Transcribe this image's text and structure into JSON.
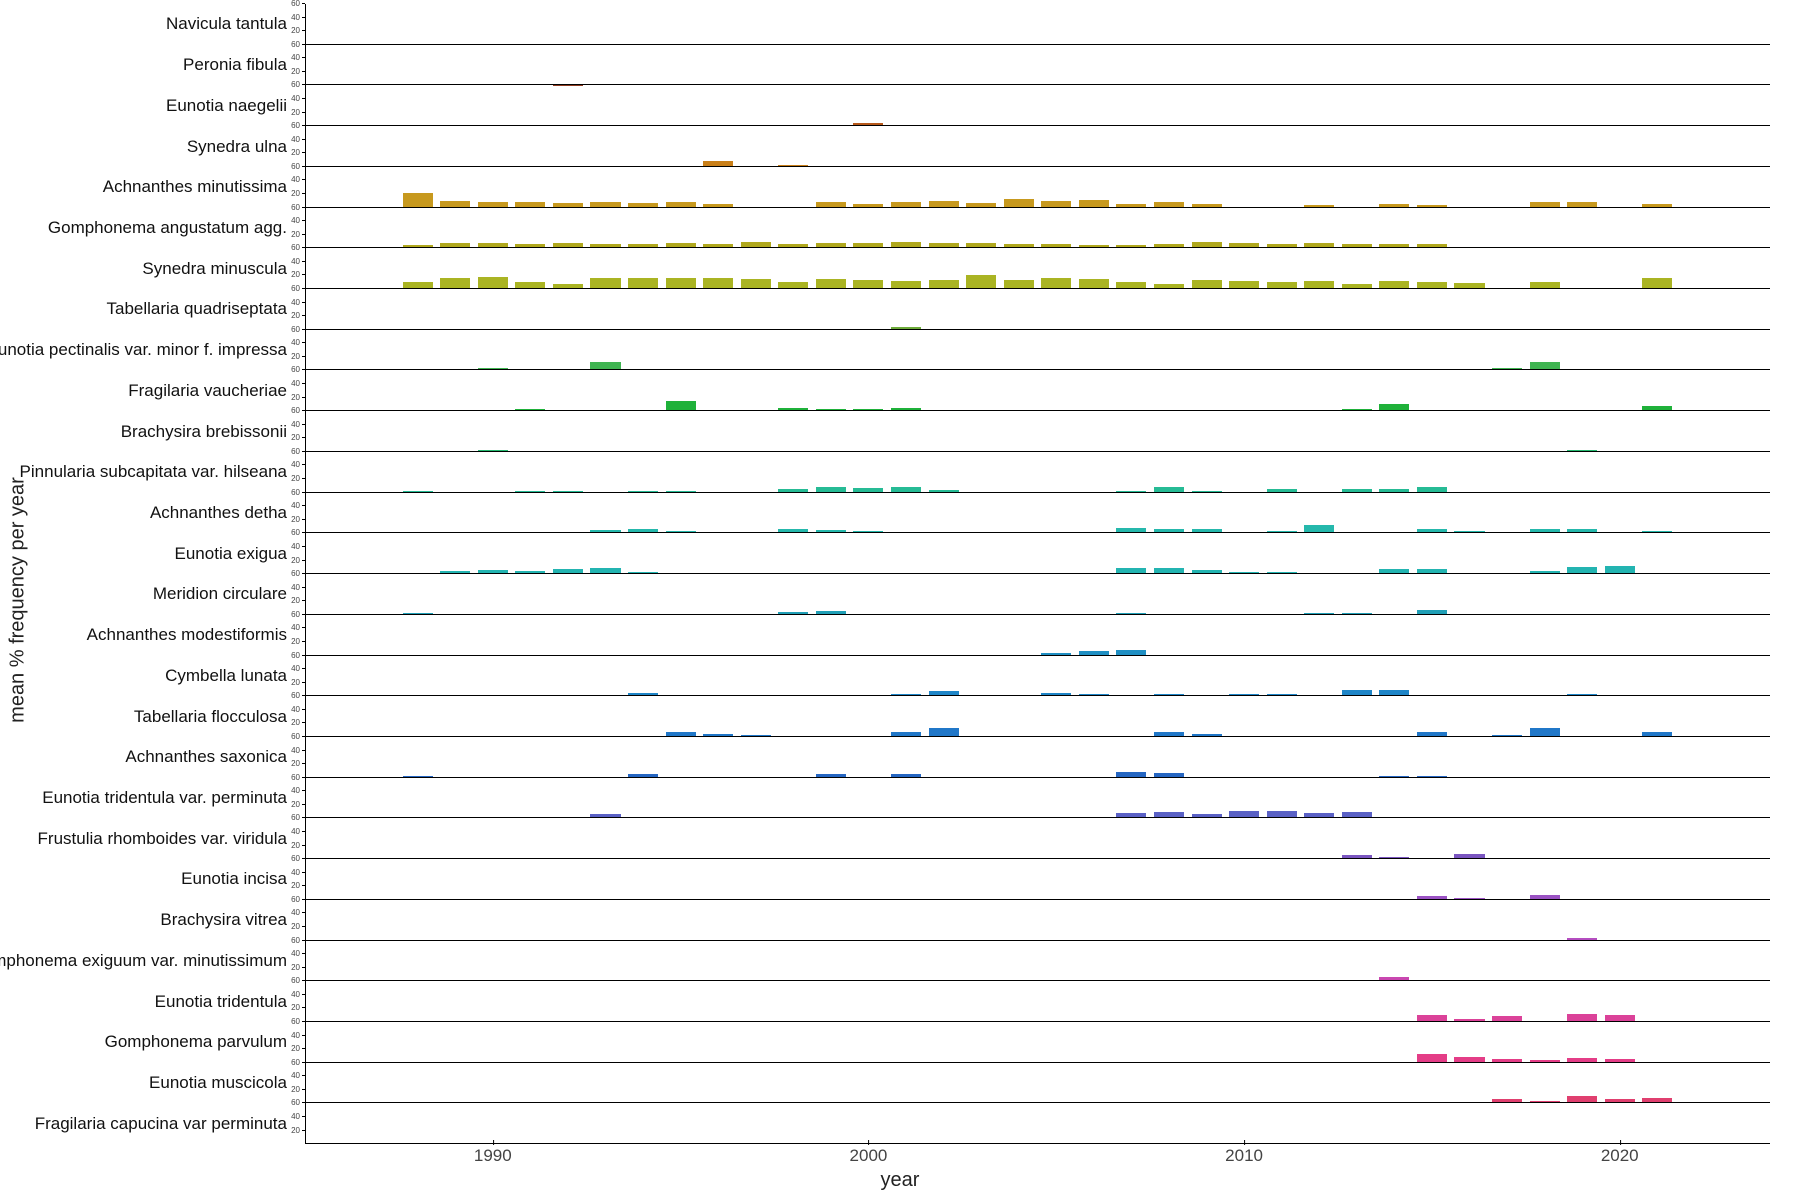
{
  "axis": {
    "ylabel": "mean % frequency per year",
    "xlabel": "year",
    "x_min": 1985,
    "x_max": 2024,
    "x_ticks": [
      1990,
      2000,
      2010,
      2020
    ],
    "y_max": 60,
    "y_ticks": [
      20,
      40,
      60
    ],
    "bar_width_years": 0.8,
    "background_color": "#ffffff",
    "axis_line_color": "#000000",
    "label_fontsize": 20,
    "species_label_fontsize": 17,
    "tick_label_fontsize": 17,
    "ytick_label_fontsize": 8
  },
  "species": [
    {
      "label": "Navicula tantula",
      "color": "#5a2121",
      "points": [
        [
          1996,
          1
        ]
      ]
    },
    {
      "label": "Peronia fibula",
      "color": "#8c3a1f",
      "points": [
        [
          1992,
          1
        ]
      ]
    },
    {
      "label": "Eunotia naegelii",
      "color": "#b6581a",
      "points": [
        [
          2000,
          5
        ]
      ]
    },
    {
      "label": "Synedra ulna",
      "color": "#c97f18",
      "points": [
        [
          1996,
          9
        ],
        [
          1998,
          3
        ]
      ]
    },
    {
      "label": "Achnanthes minutissima",
      "color": "#c7991e",
      "points": [
        [
          1988,
          22
        ],
        [
          1989,
          10
        ],
        [
          1990,
          8
        ],
        [
          1991,
          9
        ],
        [
          1992,
          7
        ],
        [
          1993,
          9
        ],
        [
          1994,
          7
        ],
        [
          1995,
          9
        ],
        [
          1996,
          6
        ],
        [
          1999,
          8
        ],
        [
          2000,
          6
        ],
        [
          2001,
          9
        ],
        [
          2002,
          10
        ],
        [
          2003,
          7
        ],
        [
          2004,
          12
        ],
        [
          2005,
          10
        ],
        [
          2006,
          11
        ],
        [
          2007,
          6
        ],
        [
          2008,
          9
        ],
        [
          2009,
          5
        ],
        [
          2012,
          4
        ],
        [
          2014,
          6
        ],
        [
          2015,
          4
        ],
        [
          2018,
          9
        ],
        [
          2019,
          9
        ],
        [
          2021,
          5
        ]
      ]
    },
    {
      "label": "Gomphonema angustatum agg.",
      "color": "#b0a81d",
      "points": [
        [
          1988,
          5
        ],
        [
          1989,
          8
        ],
        [
          1990,
          8
        ],
        [
          1991,
          7
        ],
        [
          1992,
          8
        ],
        [
          1993,
          7
        ],
        [
          1994,
          7
        ],
        [
          1995,
          8
        ],
        [
          1996,
          7
        ],
        [
          1997,
          9
        ],
        [
          1998,
          7
        ],
        [
          1999,
          8
        ],
        [
          2000,
          8
        ],
        [
          2001,
          9
        ],
        [
          2002,
          8
        ],
        [
          2003,
          8
        ],
        [
          2004,
          7
        ],
        [
          2005,
          6
        ],
        [
          2006,
          5
        ],
        [
          2007,
          5
        ],
        [
          2008,
          6
        ],
        [
          2009,
          9
        ],
        [
          2010,
          8
        ],
        [
          2011,
          7
        ],
        [
          2012,
          8
        ],
        [
          2013,
          7
        ],
        [
          2014,
          6
        ],
        [
          2015,
          6
        ]
      ]
    },
    {
      "label": "Synedra minuscula",
      "color": "#aab423",
      "points": [
        [
          1988,
          11
        ],
        [
          1989,
          16
        ],
        [
          1990,
          18
        ],
        [
          1991,
          10
        ],
        [
          1992,
          8
        ],
        [
          1993,
          17
        ],
        [
          1994,
          16
        ],
        [
          1995,
          16
        ],
        [
          1996,
          17
        ],
        [
          1997,
          15
        ],
        [
          1998,
          10
        ],
        [
          1999,
          15
        ],
        [
          2000,
          14
        ],
        [
          2001,
          12
        ],
        [
          2002,
          14
        ],
        [
          2003,
          20
        ],
        [
          2004,
          13
        ],
        [
          2005,
          16
        ],
        [
          2006,
          15
        ],
        [
          2007,
          10
        ],
        [
          2008,
          8
        ],
        [
          2009,
          13
        ],
        [
          2010,
          12
        ],
        [
          2011,
          10
        ],
        [
          2012,
          12
        ],
        [
          2013,
          7
        ],
        [
          2014,
          12
        ],
        [
          2015,
          11
        ],
        [
          2016,
          9
        ],
        [
          2018,
          11
        ],
        [
          2021,
          16
        ]
      ]
    },
    {
      "label": "Tabellaria quadriseptata",
      "color": "#6dab39",
      "points": [
        [
          2001,
          4
        ]
      ]
    },
    {
      "label": "Eunotia pectinalis var. minor f. impressa",
      "color": "#3fb451",
      "points": [
        [
          1990,
          3
        ],
        [
          1991,
          2
        ],
        [
          1993,
          12
        ],
        [
          2001,
          2
        ],
        [
          2017,
          3
        ],
        [
          2018,
          12
        ]
      ]
    },
    {
      "label": "Fragilaria vaucheriae",
      "color": "#1fb13a",
      "points": [
        [
          1989,
          2
        ],
        [
          1991,
          3
        ],
        [
          1994,
          2
        ],
        [
          1995,
          15
        ],
        [
          1998,
          4
        ],
        [
          1999,
          3
        ],
        [
          2000,
          3
        ],
        [
          2001,
          4
        ],
        [
          2005,
          2
        ],
        [
          2013,
          3
        ],
        [
          2014,
          11
        ],
        [
          2021,
          7
        ]
      ]
    },
    {
      "label": "Brachysira brebissonii",
      "color": "#26b86f",
      "points": [
        [
          1990,
          3
        ],
        [
          2016,
          2
        ],
        [
          2019,
          3
        ]
      ]
    },
    {
      "label": "Pinnularia subcapitata var. hilseana",
      "color": "#26bb95",
      "points": [
        [
          1988,
          2
        ],
        [
          1991,
          3
        ],
        [
          1992,
          2
        ],
        [
          1994,
          3
        ],
        [
          1995,
          2
        ],
        [
          1998,
          6
        ],
        [
          1999,
          9
        ],
        [
          2000,
          7
        ],
        [
          2001,
          9
        ],
        [
          2002,
          4
        ],
        [
          2007,
          3
        ],
        [
          2008,
          9
        ],
        [
          2009,
          2
        ],
        [
          2011,
          5
        ],
        [
          2013,
          5
        ],
        [
          2014,
          6
        ],
        [
          2015,
          8
        ]
      ]
    },
    {
      "label": "Achnanthes detha",
      "color": "#25b8ac",
      "points": [
        [
          1993,
          5
        ],
        [
          1994,
          7
        ],
        [
          1995,
          4
        ],
        [
          1998,
          7
        ],
        [
          1999,
          5
        ],
        [
          2000,
          4
        ],
        [
          2007,
          8
        ],
        [
          2008,
          7
        ],
        [
          2009,
          6
        ],
        [
          2011,
          3
        ],
        [
          2012,
          13
        ],
        [
          2015,
          6
        ],
        [
          2016,
          4
        ],
        [
          2018,
          6
        ],
        [
          2019,
          6
        ],
        [
          2021,
          4
        ]
      ]
    },
    {
      "label": "Eunotia exigua",
      "color": "#23b4b1",
      "points": [
        [
          1988,
          2
        ],
        [
          1989,
          4
        ],
        [
          1990,
          6
        ],
        [
          1991,
          4
        ],
        [
          1992,
          8
        ],
        [
          1993,
          9
        ],
        [
          1994,
          3
        ],
        [
          2007,
          9
        ],
        [
          2008,
          9
        ],
        [
          2009,
          6
        ],
        [
          2010,
          3
        ],
        [
          2011,
          3
        ],
        [
          2014,
          8
        ],
        [
          2015,
          7
        ],
        [
          2018,
          4
        ],
        [
          2019,
          10
        ],
        [
          2020,
          12
        ]
      ]
    },
    {
      "label": "Meridion circulare",
      "color": "#209fb6",
      "points": [
        [
          1988,
          2
        ],
        [
          1998,
          4
        ],
        [
          1999,
          5
        ],
        [
          2007,
          3
        ],
        [
          2012,
          3
        ],
        [
          2013,
          3
        ],
        [
          2015,
          7
        ]
      ]
    },
    {
      "label": "Achnanthes modestiformis",
      "color": "#1f8fc3",
      "points": [
        [
          2005,
          4
        ],
        [
          2006,
          7
        ],
        [
          2007,
          8
        ]
      ]
    },
    {
      "label": "Cymbella lunata",
      "color": "#1e85c7",
      "points": [
        [
          1994,
          5
        ],
        [
          2001,
          4
        ],
        [
          2002,
          8
        ],
        [
          2005,
          5
        ],
        [
          2006,
          4
        ],
        [
          2008,
          3
        ],
        [
          2010,
          4
        ],
        [
          2011,
          3
        ],
        [
          2013,
          9
        ],
        [
          2014,
          9
        ],
        [
          2019,
          3
        ]
      ]
    },
    {
      "label": "Tabellaria flocculosa",
      "color": "#2077c8",
      "points": [
        [
          1995,
          7
        ],
        [
          1996,
          5
        ],
        [
          1997,
          3
        ],
        [
          2001,
          8
        ],
        [
          2002,
          13
        ],
        [
          2008,
          8
        ],
        [
          2009,
          4
        ],
        [
          2015,
          7
        ],
        [
          2017,
          3
        ],
        [
          2018,
          13
        ],
        [
          2021,
          7
        ]
      ]
    },
    {
      "label": "Achnanthes saxonica",
      "color": "#2566c2",
      "points": [
        [
          1988,
          2
        ],
        [
          1994,
          5
        ],
        [
          1999,
          6
        ],
        [
          2001,
          5
        ],
        [
          2007,
          9
        ],
        [
          2008,
          7
        ],
        [
          2014,
          3
        ],
        [
          2015,
          3
        ]
      ]
    },
    {
      "label": "Eunotia tridentula var. perminuta",
      "color": "#5a61c5",
      "points": [
        [
          1988,
          2
        ],
        [
          1993,
          6
        ],
        [
          2007,
          8
        ],
        [
          2008,
          9
        ],
        [
          2009,
          6
        ],
        [
          2010,
          11
        ],
        [
          2011,
          11
        ],
        [
          2012,
          8
        ],
        [
          2013,
          9
        ]
      ]
    },
    {
      "label": "Frustulia rhomboides var. viridula",
      "color": "#7a55c0",
      "points": [
        [
          2013,
          6
        ],
        [
          2014,
          3
        ],
        [
          2016,
          7
        ]
      ]
    },
    {
      "label": "Eunotia incisa",
      "color": "#9a52c3",
      "points": [
        [
          2015,
          5
        ],
        [
          2016,
          3
        ],
        [
          2018,
          7
        ]
      ]
    },
    {
      "label": "Brachysira vitrea",
      "color": "#b44ec0",
      "points": [
        [
          2019,
          4
        ]
      ]
    },
    {
      "label": "Gomphonema exiguum var. minutissimum",
      "color": "#c947b0",
      "points": [
        [
          2014,
          6
        ]
      ]
    },
    {
      "label": "Eunotia tridentula",
      "color": "#db4299",
      "points": [
        [
          2015,
          10
        ],
        [
          2016,
          4
        ],
        [
          2017,
          9
        ],
        [
          2019,
          12
        ],
        [
          2020,
          11
        ]
      ]
    },
    {
      "label": "Gomphonema parvulum",
      "color": "#e43d87",
      "points": [
        [
          2015,
          13
        ],
        [
          2016,
          8
        ],
        [
          2017,
          6
        ],
        [
          2018,
          4
        ],
        [
          2019,
          7
        ],
        [
          2020,
          5
        ]
      ]
    },
    {
      "label": "Eunotia muscicola",
      "color": "#e03f6f",
      "points": [
        [
          2017,
          7
        ],
        [
          2018,
          3
        ],
        [
          2019,
          11
        ],
        [
          2020,
          7
        ],
        [
          2021,
          8
        ]
      ]
    },
    {
      "label": "Fragilaria capucina var perminuta",
      "color": "#c94057",
      "points": [
        [
          2021,
          2
        ]
      ]
    }
  ]
}
